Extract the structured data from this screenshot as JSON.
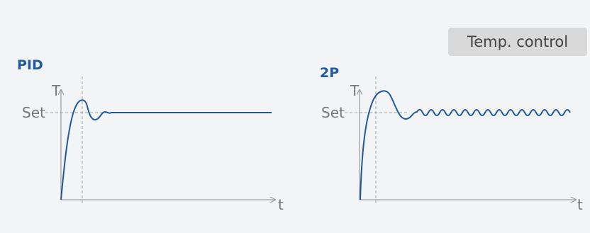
{
  "badge": {
    "label": "Temp. control"
  },
  "colors": {
    "curve": "#1f5b9c",
    "axis": "#9a9a9a",
    "title": "#1f5b9c",
    "text": "#777777",
    "dashed": "#a0a0a0"
  },
  "panels": [
    {
      "title": "PID",
      "y_axis_label": "T",
      "x_axis_label": "t",
      "set_label": "Set",
      "steady_behavior": "settles at setpoint after one overshoot"
    },
    {
      "title": "2P",
      "y_axis_label": "T",
      "x_axis_label": "t",
      "set_label": "Set",
      "steady_behavior": "continuous oscillation around setpoint"
    }
  ]
}
